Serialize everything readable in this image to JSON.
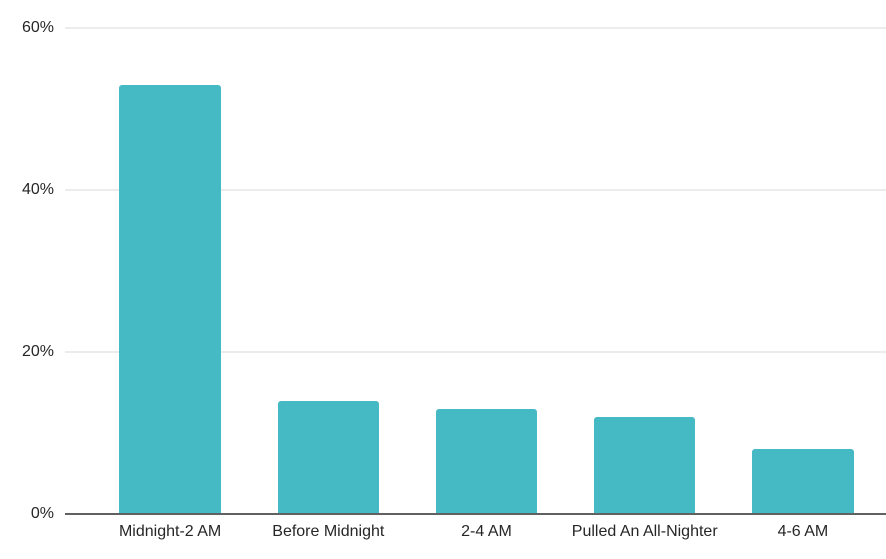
{
  "chart_data": {
    "type": "bar",
    "title": "",
    "xlabel": "",
    "ylabel": "",
    "categories": [
      "Midnight-2 AM",
      "Before Midnight",
      "2-4 AM",
      "Pulled An All-Nighter",
      "4-6 AM"
    ],
    "values": [
      53,
      14,
      13,
      12,
      8
    ],
    "ylim": [
      0,
      60
    ],
    "yticks": [
      0,
      20,
      40,
      60
    ],
    "ytick_labels": [
      "0%",
      "20%",
      "40%",
      "60%"
    ],
    "grid": true,
    "legend": "none",
    "colors": {
      "bar": "#45b9c4",
      "gridline": "#d9d9d9",
      "axis_line": "#616161",
      "text": "#262626",
      "background": "#ffffff"
    }
  }
}
